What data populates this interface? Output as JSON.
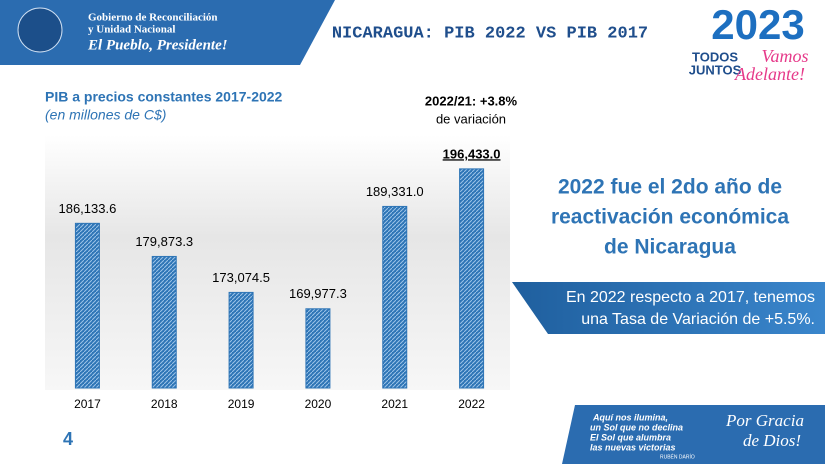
{
  "header": {
    "org": [
      "Gobierno de Reconciliación",
      "y Unidad Nacional"
    ],
    "motto": "El Pueblo, Presidente!",
    "title": "NICARAGUA: PIB 2022 VS PIB 2017",
    "logo_year": "2023",
    "logo_text": [
      "TODOS",
      "JUNTOS"
    ],
    "logo_script": [
      "Vamos",
      "Adelante!"
    ]
  },
  "chart_data": {
    "type": "bar",
    "title": "PIB a precios constantes 2017-2022",
    "subtitle": "(en millones de C$)",
    "categories": [
      "2017",
      "2018",
      "2019",
      "2020",
      "2021",
      "2022"
    ],
    "values": [
      186133.6,
      179873.3,
      173074.5,
      169977.3,
      189331.0,
      196433.0
    ],
    "value_labels": [
      "186,133.6",
      "179,873.3",
      "173,074.5",
      "169,977.3",
      "189,331.0",
      "196,433.0"
    ],
    "color": "#2e75b6",
    "ylim": [
      155000,
      200000
    ],
    "annotation": [
      "2022/21: +3.8%",
      "de variación"
    ]
  },
  "message": {
    "headline": [
      "2022 fue el 2do año de",
      "reactivación económica",
      "de Nicaragua"
    ],
    "box": [
      "En 2022 respecto a 2017, tenemos",
      "una Tasa de Variación de +5.5%."
    ]
  },
  "page_number": "4",
  "footer": {
    "quote": [
      "Aquí nos ilumina,",
      "un Sol que no declina",
      "El Sol que alumbra",
      "las nuevas victorias"
    ],
    "author": "RUBÉN DARÍO",
    "script": [
      "Por Gracia",
      "de Dios!"
    ]
  }
}
